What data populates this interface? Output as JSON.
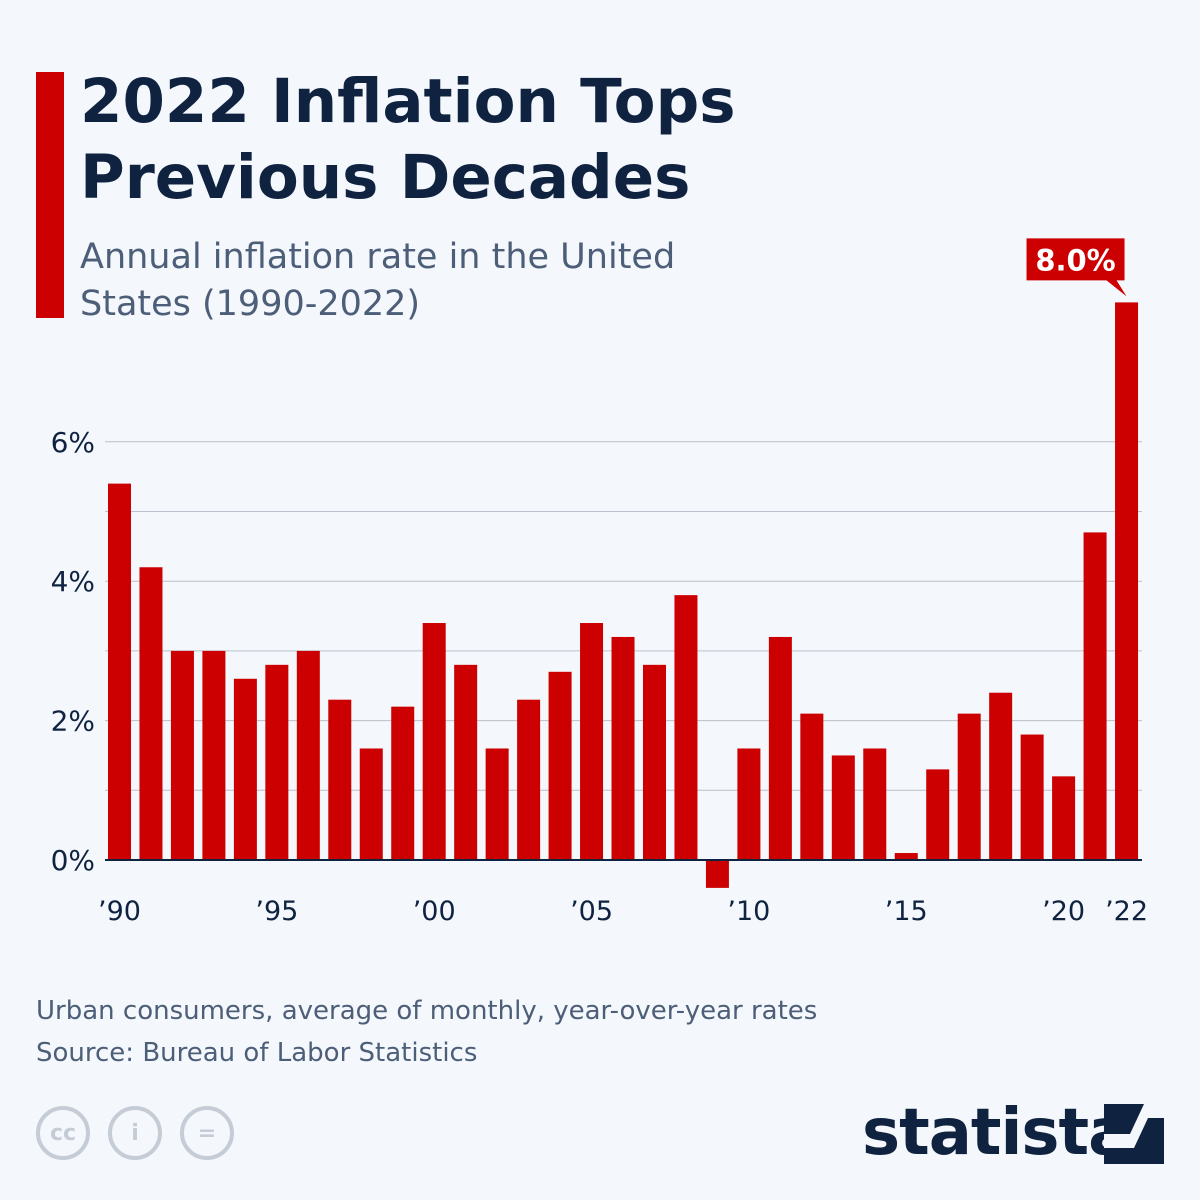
{
  "title": "2022 Inflation Tops Previous Decades",
  "subtitle": "Annual inflation rate in the United States (1990-2022)",
  "footnote": "Urban consumers, average of monthly, year-over-year rates",
  "source": "Source: Bureau of Labor Statistics",
  "logo": "statista",
  "license_icons": [
    "creative-commons-icon",
    "attribution-icon",
    "no-derivatives-icon"
  ],
  "colors": {
    "bar": "#cc0000",
    "title": "#0f2341",
    "grid": "#b9c1cc",
    "background": "#f4f7fb"
  },
  "chart_data": {
    "type": "bar",
    "title": "2022 Inflation Tops Previous Decades",
    "xlabel": "",
    "ylabel": "",
    "ylim": [
      -0.4,
      8.0
    ],
    "grid": true,
    "y_ticks": [
      "0%",
      "2%",
      "4%",
      "6%"
    ],
    "y_tick_values": [
      0,
      2,
      4,
      6
    ],
    "x_tick_labels": {
      "1990": "’90",
      "1995": "’95",
      "2000": "’00",
      "2005": "’05",
      "2010": "’10",
      "2015": "’15",
      "2020": "’20",
      "2022": "’22"
    },
    "categories": [
      1990,
      1991,
      1992,
      1993,
      1994,
      1995,
      1996,
      1997,
      1998,
      1999,
      2000,
      2001,
      2002,
      2003,
      2004,
      2005,
      2006,
      2007,
      2008,
      2009,
      2010,
      2011,
      2012,
      2013,
      2014,
      2015,
      2016,
      2017,
      2018,
      2019,
      2020,
      2021,
      2022
    ],
    "values": [
      5.4,
      4.2,
      3.0,
      3.0,
      2.6,
      2.8,
      3.0,
      2.3,
      1.6,
      2.2,
      3.4,
      2.8,
      1.6,
      2.3,
      2.7,
      3.4,
      3.2,
      2.8,
      3.8,
      -0.4,
      1.6,
      3.2,
      2.1,
      1.5,
      1.6,
      0.1,
      1.3,
      2.1,
      2.4,
      1.8,
      1.2,
      4.7,
      8.0
    ],
    "annotation": {
      "category": 2022,
      "label": "8.0%"
    }
  }
}
